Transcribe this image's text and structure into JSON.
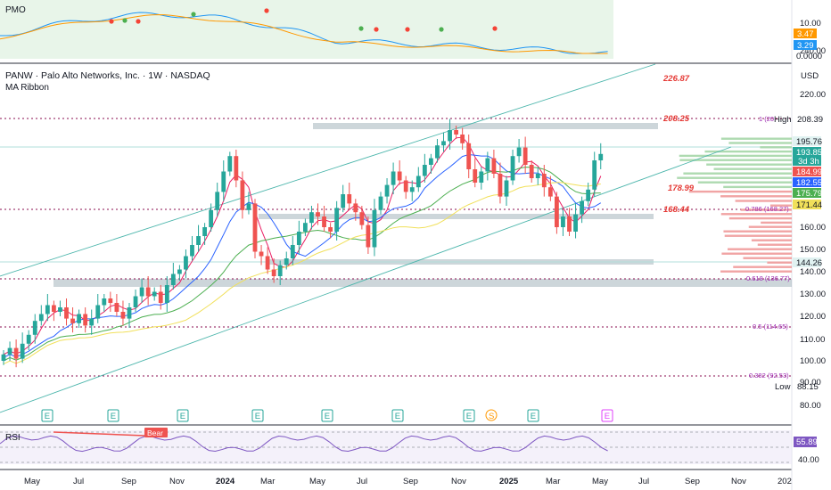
{
  "header": {
    "title": "PANW · Palo Alto Networks, Inc. · 1W · NASDAQ",
    "indicator": "MA Ribbon",
    "currency": "USD"
  },
  "pmo": {
    "label": "PMO",
    "ticks": [
      "10.00",
      "0.0000"
    ],
    "tag1": "3.47",
    "tag2": "3.29"
  },
  "rsi": {
    "label": "RSI",
    "ticks": [
      "40.00"
    ],
    "value_tag": "55.89",
    "bear_label": "Bear"
  },
  "annotations": {
    "level_22687": "226.87",
    "level_20825": "208.25",
    "level_17899": "178.99",
    "level_16844": "168.44",
    "fib_1": "1 (20",
    "fib_786": "0.786 (168.27)",
    "fib_618": "0.618 (136.77)",
    "fib_5": "0.5 (114.65)",
    "fib_382": "0.382 (92.53)"
  },
  "price_tags": {
    "high_label": "High",
    "high_value": "208.39",
    "t19576": "195.76",
    "t19385": "193.85",
    "countdown": "3d 3h",
    "t18499": "184.99",
    "t18255": "182.55",
    "t17579": "175.79",
    "t17144": "171.44",
    "t14426": "144.26",
    "low_label": "Low",
    "low_value": "88.15"
  },
  "events": {
    "earnings": "E",
    "split": "S"
  },
  "colors": {
    "up": "#26a69a",
    "down": "#ef5350",
    "ma_red": "#e91e63",
    "ma_blue": "#2962ff",
    "ma_green": "#4caf50",
    "ma_yellow": "#f1e05a",
    "channel": "#4db6ac",
    "fib_purple": "#9c27b0",
    "pmo_blue": "#2196f3",
    "pmo_orange": "#ff9800",
    "rsi": "#7e57c2"
  },
  "chart_data": [
    {
      "type": "candlestick",
      "title": "PANW · Palo Alto Networks, Inc. · 1W · NASDAQ",
      "ylabel": "USD",
      "ylim": [
        70,
        250
      ],
      "yticks": [
        80,
        90,
        100,
        110,
        120,
        130,
        140,
        150,
        160,
        170,
        180,
        190,
        200,
        210,
        220,
        240
      ],
      "x_ticks": [
        "May",
        "Jul",
        "Sep",
        "Nov",
        "2024",
        "Mar",
        "May",
        "Jul",
        "Sep",
        "Nov",
        "2025",
        "Mar",
        "May",
        "Jul",
        "Sep",
        "Nov",
        "202"
      ],
      "last_close": 193.85,
      "high": 208.39,
      "low": 88.15,
      "series": [
        {
          "name": "MA Ribbon",
          "values": [
            184.99,
            182.55,
            175.79,
            171.44
          ]
        }
      ],
      "horizontal_levels": [
        226.87,
        208.25,
        178.99,
        168.44,
        136.77,
        114.65,
        92.53
      ]
    },
    {
      "type": "line",
      "title": "PMO",
      "ylim": [
        0,
        14
      ],
      "yticks": [
        0,
        10
      ],
      "series": [
        {
          "name": "PMO",
          "values": [
            3.29
          ]
        },
        {
          "name": "Signal",
          "values": [
            3.47
          ]
        }
      ]
    },
    {
      "type": "line",
      "title": "RSI",
      "ylim": [
        30,
        80
      ],
      "yticks": [
        40
      ],
      "series": [
        {
          "name": "RSI",
          "values": [
            55.89
          ]
        }
      ]
    }
  ]
}
